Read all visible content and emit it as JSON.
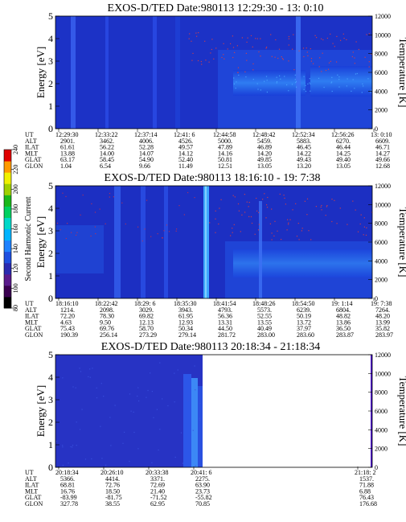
{
  "colorbar": {
    "label": "Second Harmonic Current",
    "ticks": [
      "80",
      "100",
      "120",
      "140",
      "160",
      "180",
      "200",
      "220",
      "240"
    ],
    "colors": [
      "#000000",
      "#3a0050",
      "#5a1a8c",
      "#2a2ab0",
      "#1e4fe0",
      "#1f82ff",
      "#00b4ff",
      "#00d8c8",
      "#00d060",
      "#1ab81a",
      "#a0d000",
      "#f0f000",
      "#ff9a00",
      "#e00000"
    ]
  },
  "panels": [
    {
      "title": "EXOS-D/TED   Date:980113  12:29:30 - 13: 0:10",
      "left_axis": {
        "label": "Energy [eV]",
        "ticks": [
          "0",
          "1",
          "2",
          "3",
          "4",
          "5"
        ]
      },
      "right_axis": {
        "label": "Temperature [K]",
        "ticks": [
          "0",
          "2000",
          "4000",
          "6000",
          "8000",
          "10000",
          "12000"
        ]
      },
      "orbit_table": {
        "row_labels": [
          "UT",
          "ALT",
          "ILAT",
          "MLT",
          "GLAT",
          "GLON"
        ],
        "columns": [
          [
            "12:29:30",
            "2901.",
            "61.61",
            "13.88",
            "63.17",
            "1.04"
          ],
          [
            "12:33:22",
            "3462.",
            "56.22",
            "14.00",
            "58.45",
            "6.54"
          ],
          [
            "12:37:14",
            "4006.",
            "52.28",
            "14.07",
            "54.90",
            "9.66"
          ],
          [
            "12:41: 6",
            "4526.",
            "49.57",
            "14.12",
            "52.40",
            "11.49"
          ],
          [
            "12:44:58",
            "5000.",
            "47.89",
            "14.16",
            "50.81",
            "12.51"
          ],
          [
            "12:48:42",
            "5459.",
            "46.89",
            "14.20",
            "49.85",
            "13.05"
          ],
          [
            "12:52:34",
            "5883.",
            "46.45",
            "14.22",
            "49.43",
            "13.20"
          ],
          [
            "12:56:26",
            "6270.",
            "46.44",
            "14.25",
            "49.40",
            "13.05"
          ],
          [
            "13: 0:10",
            "6609.",
            "46.71",
            "14.27",
            "49.66",
            "12.68"
          ]
        ]
      }
    },
    {
      "title": "EXOS-D/TED   Date:980113  18:16:10 - 19: 7:38",
      "left_axis": {
        "label": "Energy [eV]",
        "ticks": [
          "0",
          "1",
          "2",
          "3",
          "4",
          "5"
        ]
      },
      "right_axis": {
        "label": "Temperature [K]",
        "ticks": [
          "0",
          "2000",
          "4000",
          "6000",
          "8000",
          "10000",
          "12000"
        ]
      },
      "orbit_table": {
        "row_labels": [
          "UT",
          "ALT",
          "ILAT",
          "MLT",
          "GLAT",
          "GLON"
        ],
        "columns": [
          [
            "18:16:10",
            "1214.",
            "72.20",
            "4.63",
            "75.43",
            "190.39"
          ],
          [
            "18:22:42",
            "2098.",
            "78.30",
            "9.50",
            "69.76",
            "256.14"
          ],
          [
            "18:29: 6",
            "3029.",
            "69.82",
            "12.13",
            "58.70",
            "273.29"
          ],
          [
            "18:35:30",
            "3943.",
            "61.95",
            "12.93",
            "50.34",
            "279.14"
          ],
          [
            "18:41:54",
            "4793.",
            "56.36",
            "13.31",
            "44.50",
            "281.72"
          ],
          [
            "18:48:26",
            "5573.",
            "52.55",
            "13.55",
            "40.49",
            "283.00"
          ],
          [
            "18:54:50",
            "6239.",
            "50.19",
            "13.72",
            "37.97",
            "283.60"
          ],
          [
            "19: 1:14",
            "6804.",
            "48.82",
            "13.86",
            "36.50",
            "283.87"
          ],
          [
            "19: 7:38",
            "7264.",
            "48.20",
            "13.99",
            "35.82",
            "283.97"
          ]
        ]
      }
    },
    {
      "title": "EXOS-D/TED   Date:980113  20:18:34 - 21:18:34",
      "left_axis": {
        "label": "Energy [eV]",
        "ticks": [
          "0",
          "1",
          "2",
          "3",
          "4",
          "5"
        ]
      },
      "right_axis": {
        "label": "Temperature [K]",
        "ticks": [
          "0",
          "2000",
          "4000",
          "6000",
          "8000",
          "10000",
          "12000"
        ]
      },
      "orbit_table": {
        "row_labels": [
          "UT",
          "ALT",
          "ILAT",
          "MLT",
          "GLAT",
          "GLON"
        ],
        "columns": [
          [
            "20:18:34",
            "5366.",
            "68.81",
            "16.76",
            "-83.99",
            "327.78"
          ],
          [
            "20:26:10",
            "4414.",
            "72.76",
            "18.50",
            "-81.75",
            "38.55"
          ],
          [
            "20:33:38",
            "3371.",
            "72.69",
            "21.40",
            "-71.52",
            "62.95"
          ],
          [
            "20:41: 6",
            "2275.",
            "63.90",
            "23.73",
            "-55.82",
            "70.85"
          ],
          [
            "21:18: 2",
            "1537.",
            "71.88",
            "6.88",
            "76.43",
            "176.68"
          ]
        ]
      }
    }
  ],
  "chart_data": [
    {
      "type": "heatmap",
      "title": "EXOS-D/TED   Date:980113  12:29:30 - 13: 0:10",
      "xlabel": "UT",
      "ylabel": "Energy [eV]",
      "y2label": "Temperature [K]",
      "ylim": [
        0,
        5
      ],
      "y2lim": [
        0,
        12000
      ],
      "x_ticks": [
        "12:29:30",
        "12:33:22",
        "12:37:14",
        "12:41: 6",
        "12:44:58",
        "12:48:42",
        "12:52:34",
        "12:56:26",
        "13: 0:10"
      ],
      "data_coverage_fraction": 1.0,
      "colorbar": {
        "label": "Second Harmonic Current",
        "range": [
          80,
          240
        ]
      }
    },
    {
      "type": "heatmap",
      "title": "EXOS-D/TED   Date:980113  18:16:10 - 19: 7:38",
      "xlabel": "UT",
      "ylabel": "Energy [eV]",
      "y2label": "Temperature [K]",
      "ylim": [
        0,
        5
      ],
      "y2lim": [
        0,
        12000
      ],
      "x_ticks": [
        "18:16:10",
        "18:22:42",
        "18:29: 6",
        "18:35:30",
        "18:41:54",
        "18:48:26",
        "18:54:50",
        "19: 1:14",
        "19: 7:38"
      ],
      "data_coverage_fraction": 1.0,
      "colorbar": {
        "label": "Second Harmonic Current",
        "range": [
          80,
          240
        ]
      }
    },
    {
      "type": "heatmap",
      "title": "EXOS-D/TED   Date:980113  20:18:34 - 21:18:34",
      "xlabel": "UT",
      "ylabel": "Energy [eV]",
      "y2label": "Temperature [K]",
      "ylim": [
        0,
        5
      ],
      "y2lim": [
        0,
        12000
      ],
      "x_ticks": [
        "20:18:34",
        "20:26:10",
        "20:33:38",
        "20:41: 6",
        "21:18: 2"
      ],
      "data_coverage_fraction": 0.46,
      "colorbar": {
        "label": "Second Harmonic Current",
        "range": [
          80,
          240
        ]
      }
    }
  ]
}
